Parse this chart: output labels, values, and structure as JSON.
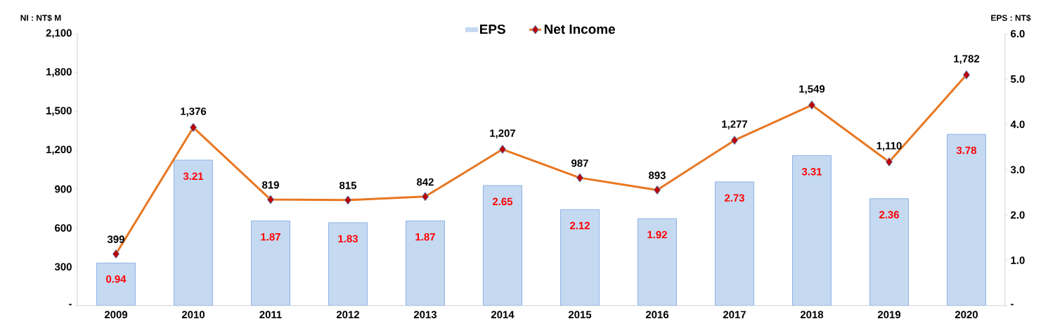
{
  "chart_data": {
    "type": "bar",
    "ylabel": "NI : NT$ M",
    "y2label": "EPS : NT$",
    "categories": [
      "2009",
      "2010",
      "2011",
      "2012",
      "2013",
      "2014",
      "2015",
      "2016",
      "2017",
      "2018",
      "2019",
      "2020"
    ],
    "series": [
      {
        "name": "EPS",
        "axis": "y2",
        "color": "#c5d9f1",
        "values": [
          0.94,
          3.21,
          1.87,
          1.83,
          1.87,
          2.65,
          2.12,
          1.92,
          2.73,
          3.31,
          2.36,
          3.78
        ],
        "value_labels": [
          "0.94",
          "3.21",
          "1.87",
          "1.83",
          "1.87",
          "2.65",
          "2.12",
          "1.92",
          "2.73",
          "3.31",
          "2.36",
          "3.78"
        ]
      },
      {
        "name": "Net Income",
        "type": "line",
        "axis": "y",
        "color": "#e87722",
        "values": [
          399,
          1376,
          819,
          815,
          842,
          1207,
          987,
          893,
          1277,
          1549,
          1110,
          1782
        ],
        "value_labels": [
          "399",
          "1,376",
          "819",
          "815",
          "842",
          "1,207",
          "987",
          "893",
          "1,277",
          "1,549",
          "1,110",
          "1,782"
        ]
      }
    ],
    "ylim": [
      0,
      2100
    ],
    "yticks": [
      {
        "value": 0,
        "label": "-"
      },
      {
        "value": 300,
        "label": "300"
      },
      {
        "value": 600,
        "label": "600"
      },
      {
        "value": 900,
        "label": "900"
      },
      {
        "value": 1200,
        "label": "1,200"
      },
      {
        "value": 1500,
        "label": "1,500"
      },
      {
        "value": 1800,
        "label": "1,800"
      },
      {
        "value": 2100,
        "label": "2,100"
      }
    ],
    "y2lim": [
      0,
      6
    ],
    "y2ticks": [
      {
        "value": 0,
        "label": "-"
      },
      {
        "value": 1,
        "label": "1.0"
      },
      {
        "value": 2,
        "label": "2.0"
      },
      {
        "value": 3,
        "label": "3.0"
      },
      {
        "value": 4,
        "label": "4.0"
      },
      {
        "value": 5,
        "label": "5.0"
      },
      {
        "value": 6,
        "label": "6.0"
      }
    ],
    "marker": "diamond",
    "line_style": "solid",
    "legend": "top"
  }
}
